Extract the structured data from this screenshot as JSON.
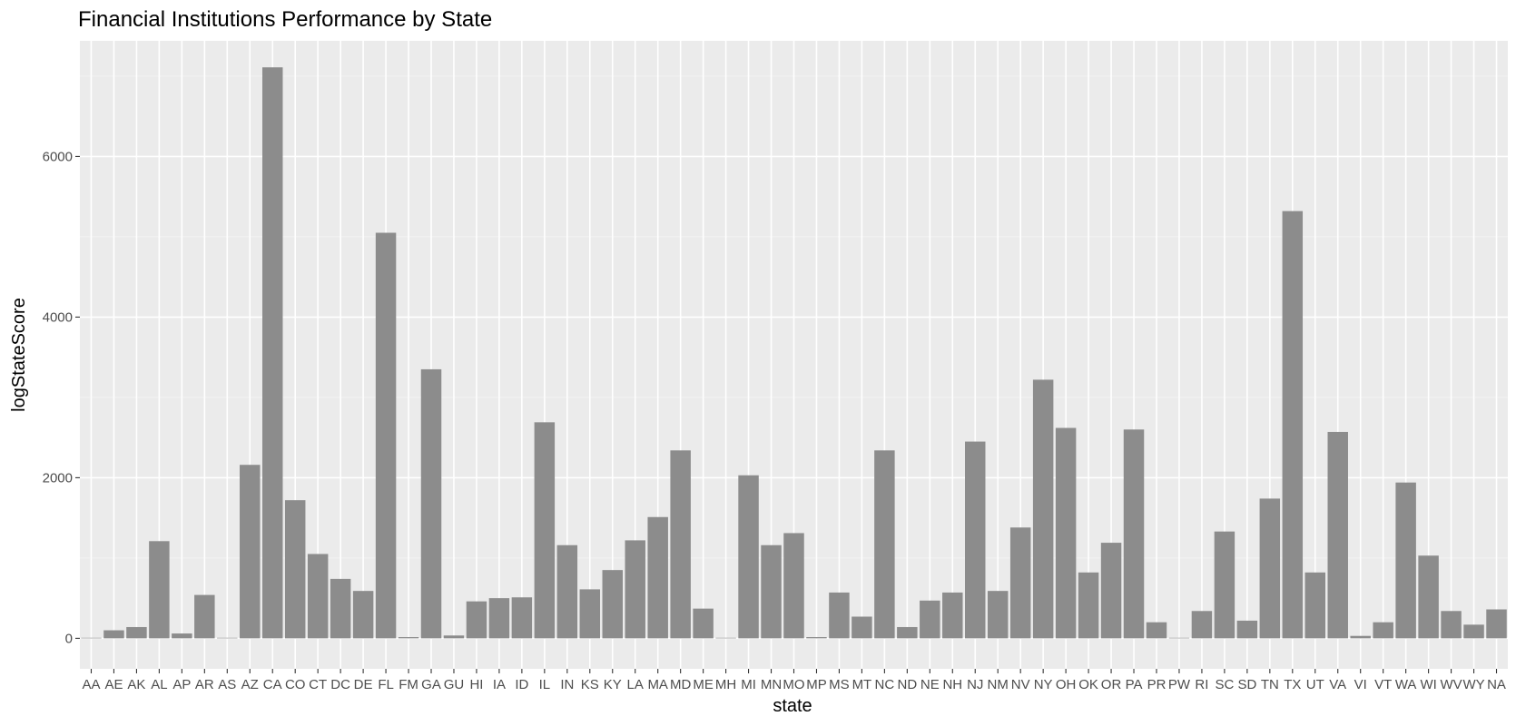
{
  "chart_data": {
    "type": "bar",
    "title": "Financial Institutions Performance by State",
    "xlabel": "state",
    "ylabel": "logStateScore",
    "ylim": [
      -380,
      7440
    ],
    "yticks": [
      0,
      2000,
      4000,
      6000
    ],
    "ytick_labels": [
      "0",
      "2000",
      "4000",
      "6000"
    ],
    "grid": true,
    "legend": "none",
    "bar_color": "#8c8c8c",
    "panel_background": "#ebebeb",
    "categories": [
      "AA",
      "AE",
      "AK",
      "AL",
      "AP",
      "AR",
      "AS",
      "AZ",
      "CA",
      "CO",
      "CT",
      "DC",
      "DE",
      "FL",
      "FM",
      "GA",
      "GU",
      "HI",
      "IA",
      "ID",
      "IL",
      "IN",
      "KS",
      "KY",
      "LA",
      "MA",
      "MD",
      "ME",
      "MH",
      "MI",
      "MN",
      "MO",
      "MP",
      "MS",
      "MT",
      "NC",
      "ND",
      "NE",
      "NH",
      "NJ",
      "NM",
      "NV",
      "NY",
      "OH",
      "OK",
      "OR",
      "PA",
      "PR",
      "PW",
      "RI",
      "SC",
      "SD",
      "TN",
      "TX",
      "UT",
      "VA",
      "VI",
      "VT",
      "WA",
      "WI",
      "WV",
      "WY",
      "NA"
    ],
    "values": [
      0,
      100,
      140,
      1210,
      60,
      540,
      5,
      2160,
      7110,
      1720,
      1050,
      740,
      590,
      5050,
      15,
      3350,
      35,
      460,
      500,
      510,
      2690,
      1160,
      610,
      850,
      1220,
      1510,
      2340,
      370,
      5,
      2030,
      1160,
      1310,
      15,
      570,
      270,
      2340,
      140,
      470,
      570,
      2450,
      590,
      1380,
      3220,
      2620,
      820,
      1190,
      2600,
      200,
      5,
      340,
      1330,
      220,
      1740,
      5320,
      820,
      2570,
      30,
      200,
      1940,
      1030,
      340,
      170,
      360
    ]
  }
}
